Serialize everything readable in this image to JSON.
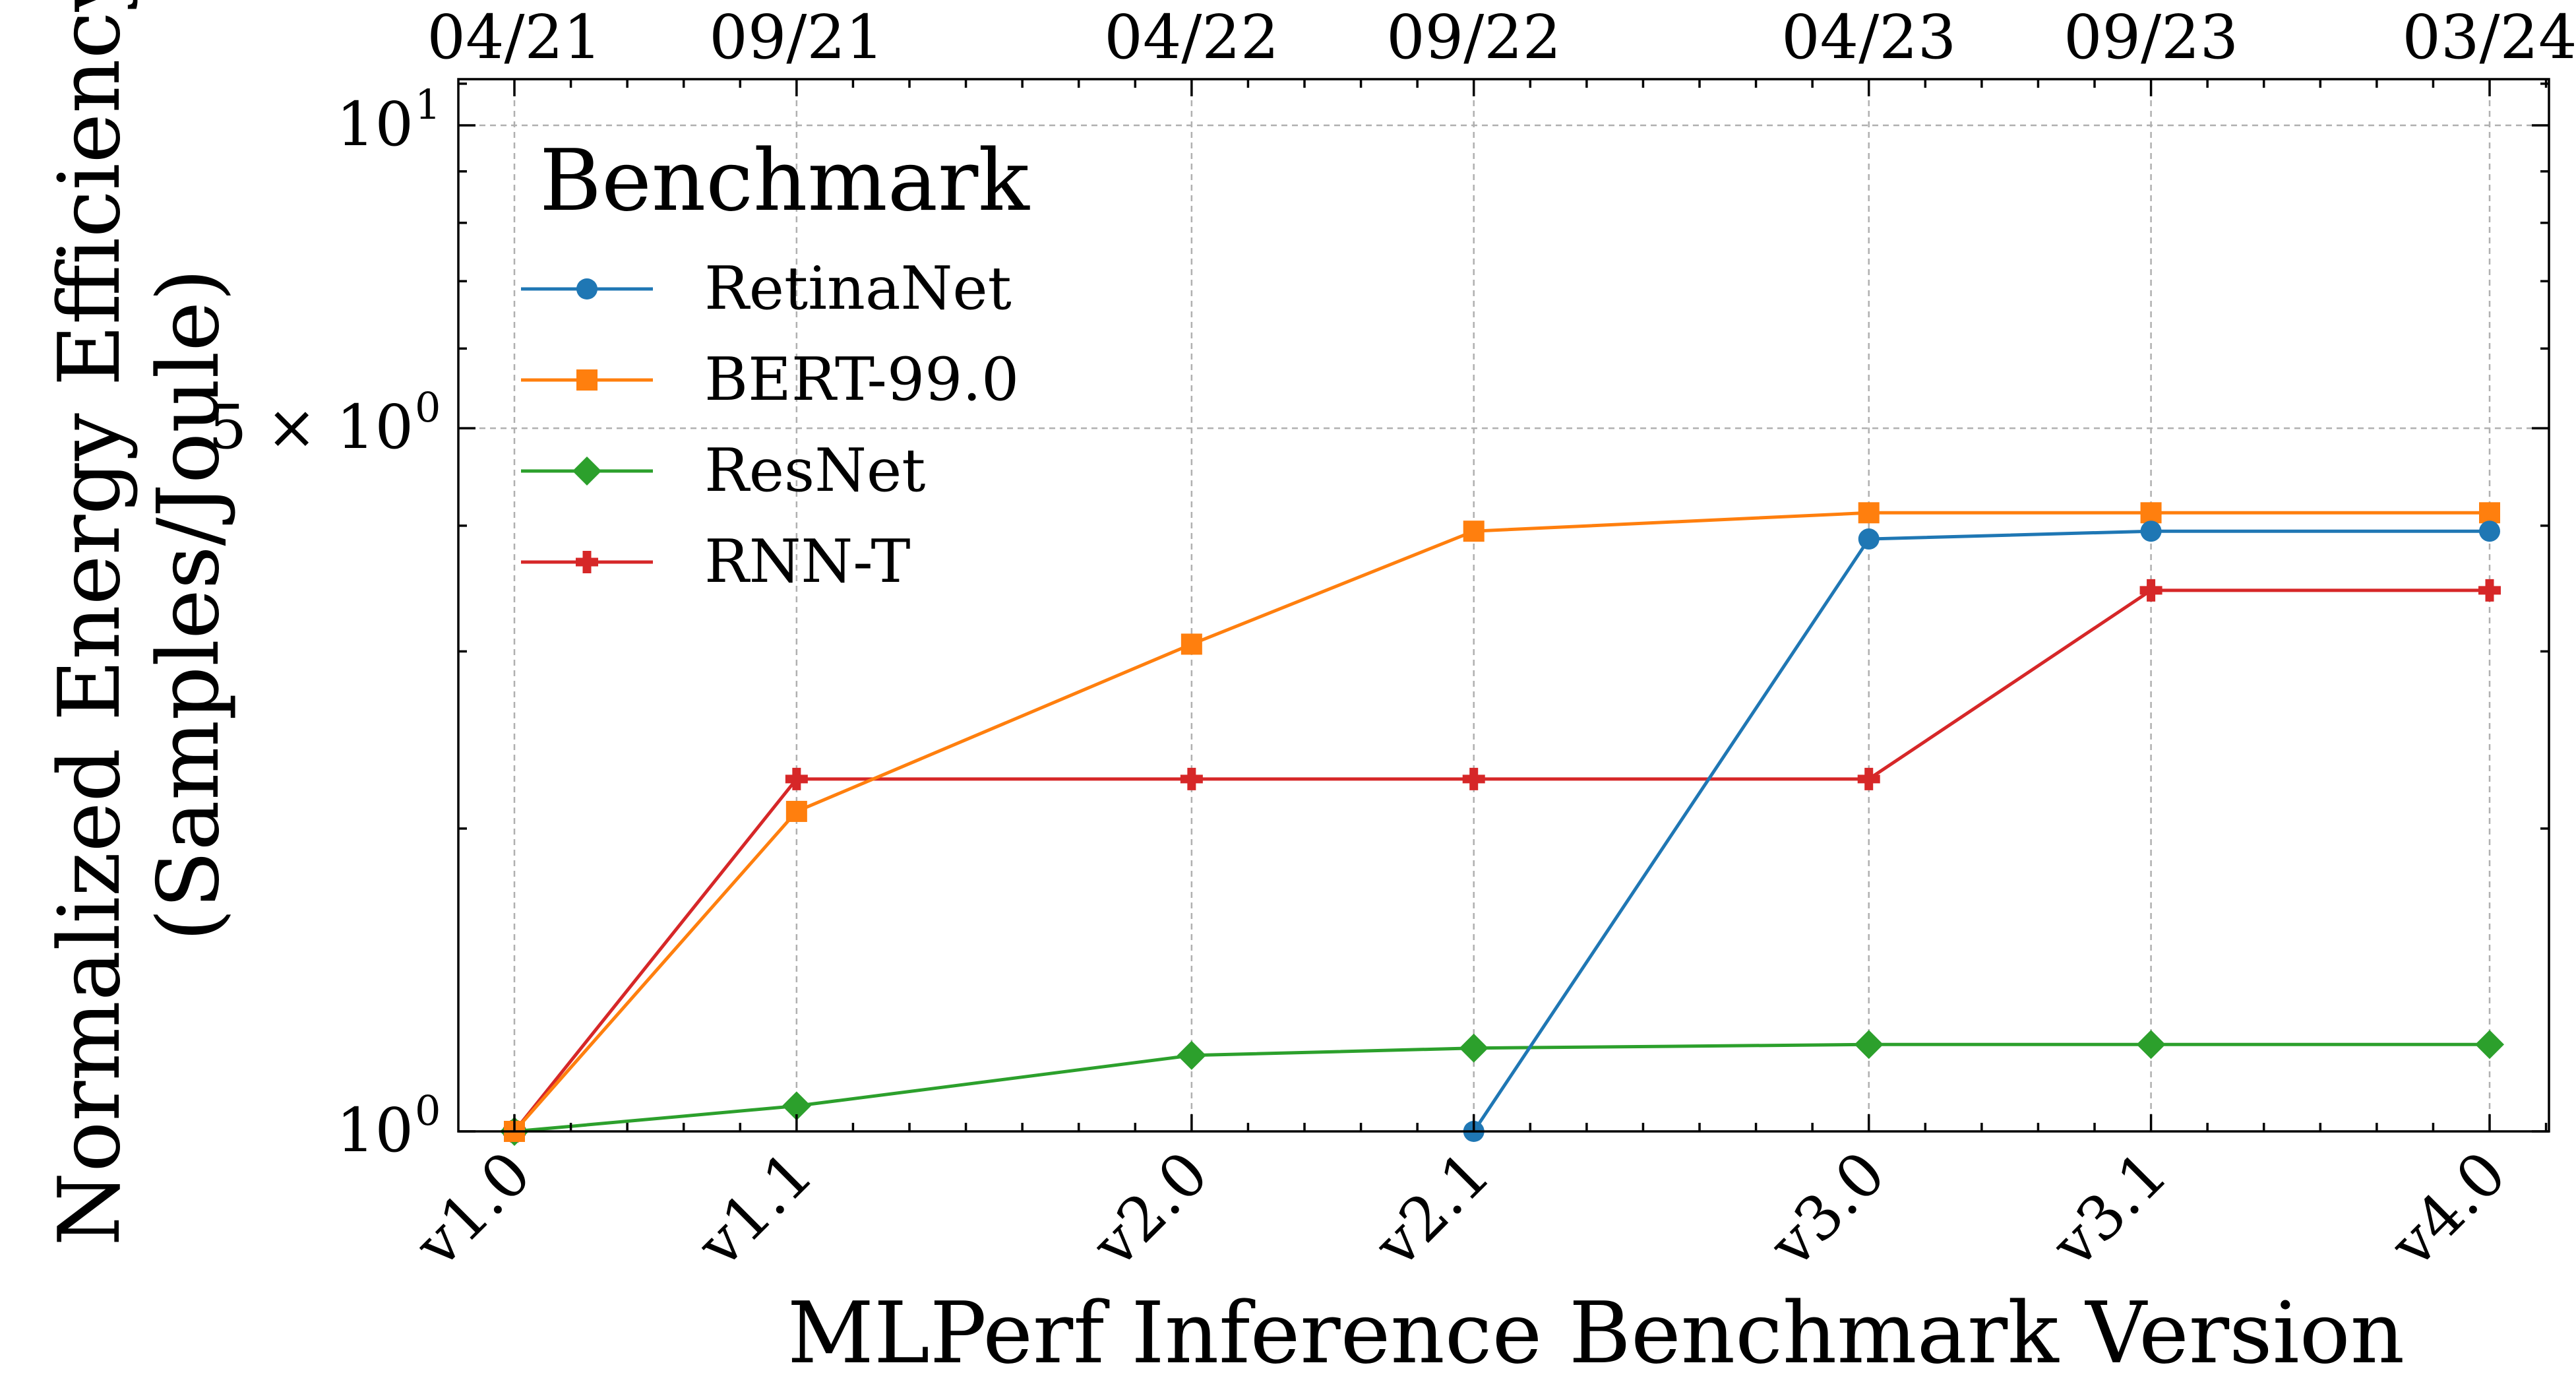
{
  "chart_data": {
    "type": "line",
    "xlabel": "MLPerf Inference Benchmark Version",
    "ylabel": "Normalized Energy Efficiency (Samples/Joule)",
    "ylabel_lines": [
      "Normalized Energy Efficiency",
      "(Samples/Joule)"
    ],
    "yscale": "log",
    "ylim": [
      1,
      11
    ],
    "grid": true,
    "categories": [
      "v1.0",
      "v1.1",
      "v2.0",
      "v2.1",
      "v3.0",
      "v3.1",
      "v4.0"
    ],
    "x_months": [
      0,
      5,
      12,
      17,
      24,
      29,
      35
    ],
    "top_axis_labels": [
      "04/21",
      "09/21",
      "04/22",
      "09/22",
      "04/23",
      "09/23",
      "03/24"
    ],
    "y_ticks": [
      {
        "value": 1,
        "label": "10",
        "exp": "0"
      },
      {
        "value": 5,
        "label": "5 × 10",
        "exp": "0"
      },
      {
        "value": 10,
        "label": "10",
        "exp": "1"
      }
    ],
    "legend": {
      "title": "Benchmark",
      "position": "top-left"
    },
    "series": [
      {
        "name": "RetinaNet",
        "color": "#1f77b4",
        "marker": "circle",
        "values": [
          null,
          null,
          null,
          1.0,
          3.88,
          3.95,
          3.95
        ]
      },
      {
        "name": "BERT-99.0",
        "color": "#ff7f0e",
        "marker": "square",
        "values": [
          1.0,
          2.08,
          3.05,
          3.95,
          4.12,
          4.12,
          4.12
        ]
      },
      {
        "name": "ResNet",
        "color": "#2ca02c",
        "marker": "diamond",
        "values": [
          1.0,
          1.06,
          1.19,
          1.21,
          1.22,
          1.22,
          1.22
        ]
      },
      {
        "name": "RNN-T",
        "color": "#d62728",
        "marker": "plus",
        "values": [
          1.0,
          2.24,
          2.24,
          2.24,
          2.24,
          3.45,
          3.45
        ]
      }
    ]
  }
}
